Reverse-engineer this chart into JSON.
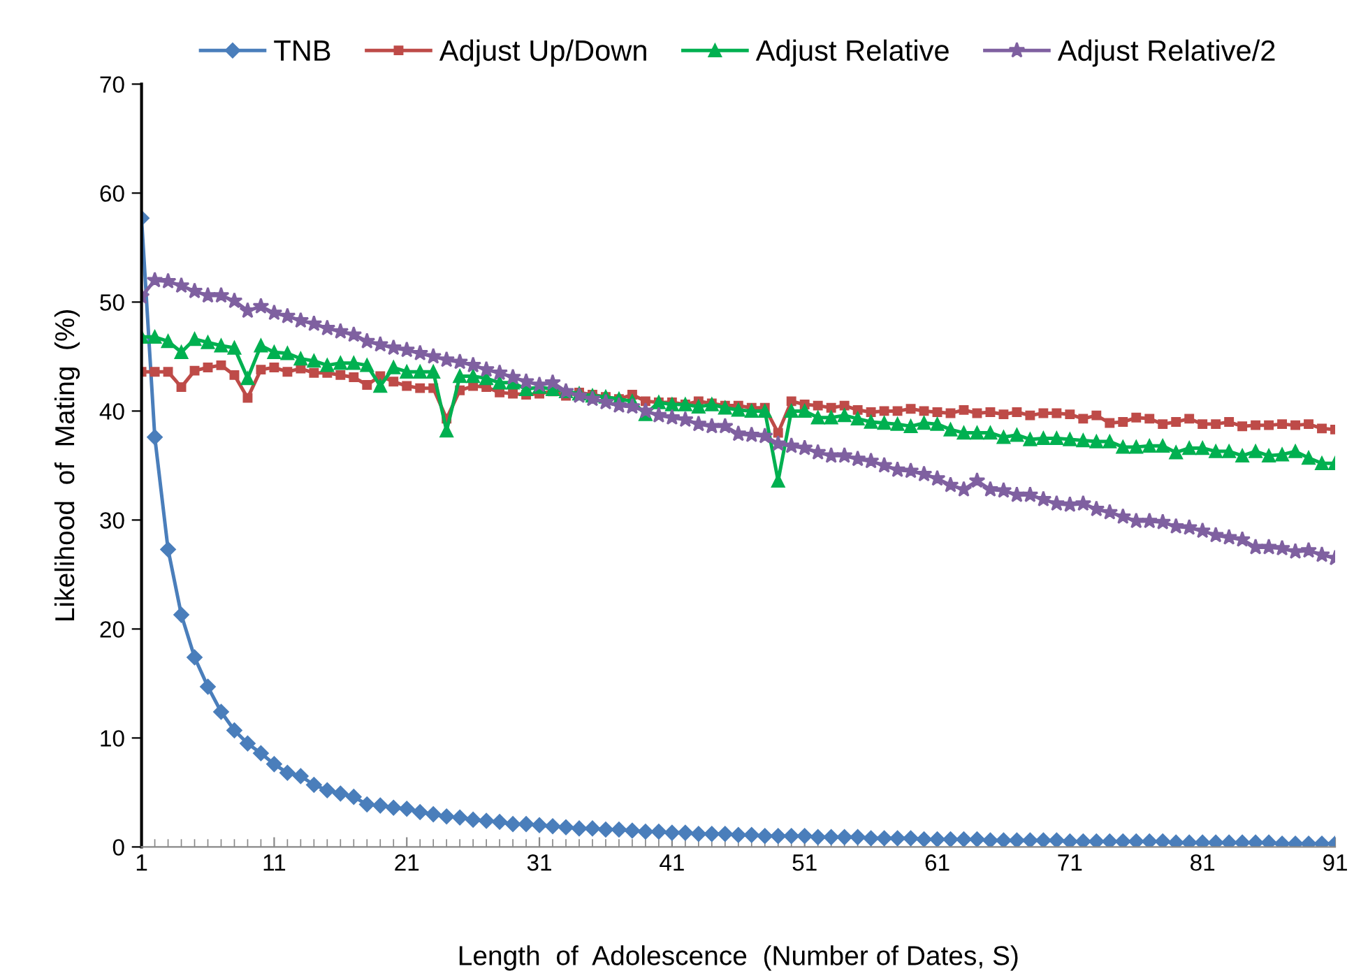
{
  "chart_data": {
    "type": "line",
    "xlabel": "Length  of  Adolescence  (Number of Dates, S)",
    "ylabel": "Likelihood  of  Mating  (%)",
    "x": [
      1,
      2,
      3,
      4,
      5,
      6,
      7,
      8,
      9,
      10,
      11,
      12,
      13,
      14,
      15,
      16,
      17,
      18,
      19,
      20,
      21,
      22,
      23,
      24,
      25,
      26,
      27,
      28,
      29,
      30,
      31,
      32,
      33,
      34,
      35,
      36,
      37,
      38,
      39,
      40,
      41,
      42,
      43,
      44,
      45,
      46,
      47,
      48,
      49,
      50,
      51,
      52,
      53,
      54,
      55,
      56,
      57,
      58,
      59,
      60,
      61,
      62,
      63,
      64,
      65,
      66,
      67,
      68,
      69,
      70,
      71,
      72,
      73,
      74,
      75,
      76,
      77,
      78,
      79,
      80,
      81,
      82,
      83,
      84,
      85,
      86,
      87,
      88,
      89,
      90,
      91
    ],
    "xlim": [
      1,
      91
    ],
    "xticks": [
      1,
      11,
      21,
      31,
      41,
      51,
      61,
      71,
      81,
      91
    ],
    "ylim": [
      0,
      70
    ],
    "yticks": [
      0,
      10,
      20,
      30,
      40,
      50,
      60,
      70
    ],
    "grid": false,
    "legend": "top",
    "series": [
      {
        "name": "TNB",
        "color": "#4a7ebb",
        "marker": "diamond",
        "values": [
          57.7,
          37.6,
          27.3,
          21.3,
          17.4,
          14.7,
          12.4,
          10.7,
          9.5,
          8.6,
          7.6,
          6.8,
          6.5,
          5.7,
          5.2,
          4.9,
          4.6,
          3.9,
          3.8,
          3.6,
          3.5,
          3.2,
          3.0,
          2.8,
          2.7,
          2.5,
          2.4,
          2.3,
          2.1,
          2.1,
          2.0,
          1.9,
          1.8,
          1.7,
          1.7,
          1.6,
          1.6,
          1.5,
          1.4,
          1.4,
          1.3,
          1.3,
          1.2,
          1.2,
          1.2,
          1.1,
          1.1,
          1.0,
          1.0,
          1.0,
          1.0,
          0.9,
          0.9,
          0.9,
          0.9,
          0.8,
          0.8,
          0.8,
          0.8,
          0.7,
          0.7,
          0.7,
          0.7,
          0.7,
          0.6,
          0.6,
          0.6,
          0.6,
          0.6,
          0.6,
          0.5,
          0.5,
          0.5,
          0.5,
          0.5,
          0.5,
          0.5,
          0.5,
          0.4,
          0.4,
          0.4,
          0.4,
          0.4,
          0.4,
          0.4,
          0.4,
          0.3,
          0.3,
          0.3,
          0.3,
          0.3
        ]
      },
      {
        "name": "Adjust Up/Down",
        "color": "#be4b48",
        "marker": "square",
        "values": [
          43.6,
          43.6,
          43.6,
          42.2,
          43.7,
          44.0,
          44.2,
          43.3,
          41.2,
          43.8,
          44.0,
          43.6,
          43.9,
          43.5,
          43.5,
          43.3,
          43.1,
          42.4,
          43.2,
          42.7,
          42.3,
          42.1,
          42.1,
          39.3,
          41.9,
          42.3,
          42.2,
          41.7,
          41.6,
          41.5,
          41.6,
          41.8,
          41.4,
          41.7,
          41.5,
          41.3,
          41.1,
          41.5,
          40.9,
          40.8,
          40.8,
          40.6,
          40.9,
          40.7,
          40.5,
          40.5,
          40.3,
          40.3,
          38.0,
          40.9,
          40.6,
          40.5,
          40.3,
          40.5,
          40.1,
          39.9,
          40.0,
          40.0,
          40.2,
          40.0,
          39.9,
          39.8,
          40.1,
          39.8,
          39.9,
          39.7,
          39.9,
          39.6,
          39.8,
          39.8,
          39.7,
          39.3,
          39.6,
          38.9,
          39.0,
          39.4,
          39.3,
          38.8,
          39.0,
          39.3,
          38.8,
          38.8,
          39.0,
          38.6,
          38.7,
          38.7,
          38.8,
          38.7,
          38.8,
          38.4,
          38.3
        ]
      },
      {
        "name": "Adjust Relative",
        "color": "#00b050",
        "marker": "triangle",
        "values": [
          46.8,
          46.8,
          46.4,
          45.4,
          46.6,
          46.3,
          46.0,
          45.8,
          43.0,
          46.0,
          45.4,
          45.3,
          44.8,
          44.6,
          44.2,
          44.4,
          44.4,
          44.2,
          42.3,
          44.0,
          43.6,
          43.6,
          43.6,
          38.2,
          43.2,
          43.2,
          43.0,
          42.6,
          42.6,
          42.0,
          42.2,
          42.0,
          41.8,
          41.6,
          41.4,
          41.3,
          41.1,
          40.9,
          39.7,
          40.8,
          40.6,
          40.6,
          40.4,
          40.6,
          40.3,
          40.1,
          40.0,
          40.0,
          33.6,
          40.0,
          40.0,
          39.4,
          39.4,
          39.6,
          39.3,
          39.0,
          38.9,
          38.8,
          38.6,
          38.9,
          38.8,
          38.3,
          38.0,
          38.0,
          38.0,
          37.6,
          37.8,
          37.4,
          37.5,
          37.5,
          37.4,
          37.3,
          37.2,
          37.2,
          36.7,
          36.7,
          36.8,
          36.8,
          36.2,
          36.6,
          36.6,
          36.3,
          36.3,
          35.9,
          36.3,
          35.9,
          36.0,
          36.3,
          35.7,
          35.2,
          35.2
        ]
      },
      {
        "name": "Adjust Relative/2",
        "color": "#7f60a0",
        "marker": "star",
        "values": [
          50.5,
          52.0,
          51.9,
          51.5,
          51.0,
          50.6,
          50.6,
          50.1,
          49.2,
          49.6,
          49.0,
          48.7,
          48.3,
          48.0,
          47.6,
          47.3,
          47.0,
          46.4,
          46.1,
          45.8,
          45.6,
          45.3,
          45.0,
          44.7,
          44.5,
          44.2,
          43.8,
          43.5,
          43.1,
          42.7,
          42.4,
          42.6,
          41.8,
          41.4,
          41.1,
          40.8,
          40.5,
          40.4,
          40.0,
          39.6,
          39.4,
          39.2,
          38.8,
          38.6,
          38.6,
          37.9,
          37.8,
          37.7,
          37.0,
          36.8,
          36.6,
          36.2,
          35.9,
          35.9,
          35.6,
          35.4,
          35.0,
          34.6,
          34.5,
          34.2,
          33.8,
          33.2,
          32.8,
          33.6,
          32.8,
          32.7,
          32.3,
          32.3,
          31.9,
          31.5,
          31.4,
          31.5,
          31.0,
          30.7,
          30.3,
          29.9,
          29.9,
          29.8,
          29.4,
          29.3,
          29.0,
          28.6,
          28.4,
          28.2,
          27.5,
          27.5,
          27.4,
          27.1,
          27.2,
          26.8,
          26.5
        ]
      }
    ]
  }
}
